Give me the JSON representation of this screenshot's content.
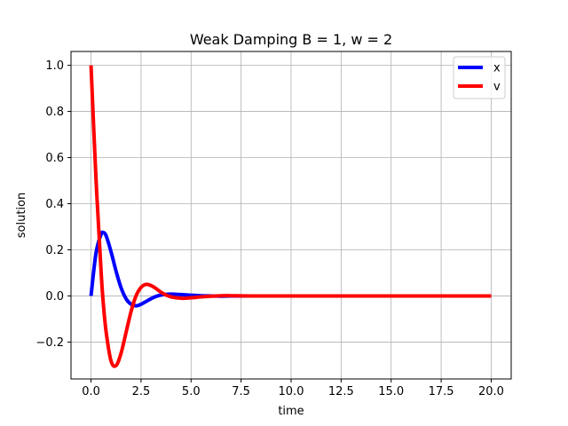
{
  "chart_data": {
    "type": "line",
    "title": "Weak Damping B = 1, w = 2",
    "xlabel": "time",
    "ylabel": "solution",
    "xlim": [
      -1,
      21
    ],
    "ylim": [
      -0.36,
      1.06
    ],
    "xticks": [
      0,
      2.5,
      5,
      7.5,
      10,
      12.5,
      15,
      17.5,
      20
    ],
    "xtick_labels": [
      "0.0",
      "2.5",
      "5.0",
      "7.5",
      "10.0",
      "12.5",
      "15.0",
      "17.5",
      "20.0"
    ],
    "yticks": [
      -0.2,
      0,
      0.2,
      0.4,
      0.6,
      0.8,
      1.0
    ],
    "ytick_labels": [
      "−0.2",
      "0.0",
      "0.2",
      "0.4",
      "0.6",
      "0.8",
      "1.0"
    ],
    "grid": true,
    "legend_position": "top-right",
    "x": [
      0,
      0.25,
      0.5,
      0.6,
      0.75,
      1.0,
      1.25,
      1.5,
      1.75,
      2.0,
      2.25,
      2.5,
      2.75,
      3.0,
      3.25,
      3.5,
      3.75,
      4.0,
      4.5,
      5.0,
      5.5,
      6.0,
      6.5,
      7.0,
      8.0,
      10.0,
      12.5,
      15.0,
      17.5,
      20.0
    ],
    "series": [
      {
        "name": "x",
        "color": "#0000ff",
        "values": [
          0,
          0.186,
          0.266,
          0.275,
          0.262,
          0.192,
          0.108,
          0.036,
          -0.012,
          -0.036,
          -0.043,
          -0.036,
          -0.024,
          -0.012,
          -0.002,
          0.004,
          0.007,
          0.008,
          0.006,
          0.003,
          0.001,
          0.0,
          -0.001,
          0.0,
          0.0,
          0.0,
          0.0,
          0.0,
          0.0,
          0.0
        ]
      },
      {
        "name": "v",
        "color": "#ff0000",
        "values": [
          1.0,
          0.507,
          0.112,
          -0.017,
          -0.152,
          -0.282,
          -0.302,
          -0.249,
          -0.159,
          -0.068,
          0.0,
          0.037,
          0.05,
          0.045,
          0.032,
          0.016,
          0.004,
          -0.004,
          -0.01,
          -0.008,
          -0.004,
          -0.001,
          0.001,
          0.001,
          0.0,
          0.0,
          0.0,
          0.0,
          0.0,
          0.0
        ]
      }
    ]
  }
}
